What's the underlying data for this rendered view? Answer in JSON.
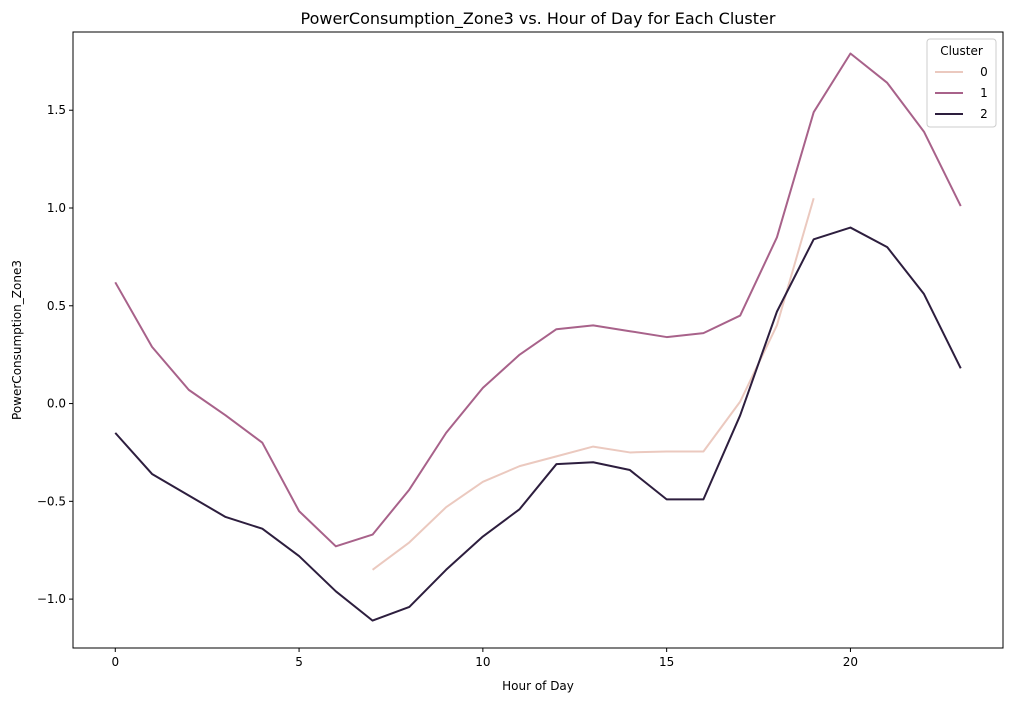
{
  "chart_data": {
    "type": "line",
    "title": "PowerConsumption_Zone3 vs. Hour of Day for Each Cluster",
    "xlabel": "Hour of Day",
    "ylabel": "PowerConsumption_Zone3",
    "xlim": [
      -1.15,
      24.15
    ],
    "ylim": [
      -1.25,
      1.9
    ],
    "xticks": [
      0,
      5,
      10,
      15,
      20
    ],
    "yticks": [
      -1.0,
      -0.5,
      0.0,
      0.5,
      1.0,
      1.5
    ],
    "ytick_labels": [
      "−1.0",
      "−0.5",
      "0.0",
      "0.5",
      "1.0",
      "1.5"
    ],
    "grid": false,
    "legend": {
      "title": "Cluster",
      "placement": "top-right"
    },
    "series": [
      {
        "name": "0",
        "color": "#ebc9bf",
        "x": [
          7,
          8,
          9,
          10,
          11,
          12,
          13,
          14,
          15,
          16,
          17,
          18,
          19
        ],
        "y": [
          -0.85,
          -0.71,
          -0.53,
          -0.4,
          -0.32,
          -0.27,
          -0.22,
          -0.25,
          -0.245,
          -0.245,
          0.01,
          0.4,
          1.05
        ]
      },
      {
        "name": "1",
        "color": "#a8628a",
        "x": [
          0,
          1,
          2,
          3,
          4,
          5,
          6,
          7,
          8,
          9,
          10,
          11,
          12,
          13,
          14,
          15,
          16,
          17,
          18,
          19,
          20,
          21,
          22,
          23
        ],
        "y": [
          0.62,
          0.29,
          0.07,
          -0.06,
          -0.2,
          -0.55,
          -0.73,
          -0.67,
          -0.44,
          -0.15,
          0.08,
          0.25,
          0.38,
          0.4,
          0.37,
          0.34,
          0.36,
          0.45,
          0.85,
          1.49,
          1.79,
          1.64,
          1.39,
          1.01
        ]
      },
      {
        "name": "2",
        "color": "#2d1e3e",
        "x": [
          0,
          1,
          2,
          3,
          4,
          5,
          6,
          7,
          8,
          9,
          10,
          11,
          12,
          13,
          14,
          15,
          16,
          17,
          18,
          19,
          20,
          21,
          22,
          23
        ],
        "y": [
          -0.15,
          -0.36,
          -0.47,
          -0.58,
          -0.64,
          -0.78,
          -0.96,
          -1.11,
          -1.04,
          -0.85,
          -0.68,
          -0.54,
          -0.31,
          -0.3,
          -0.34,
          -0.49,
          -0.49,
          -0.06,
          0.47,
          0.84,
          0.9,
          0.8,
          0.56,
          0.18
        ]
      }
    ]
  }
}
